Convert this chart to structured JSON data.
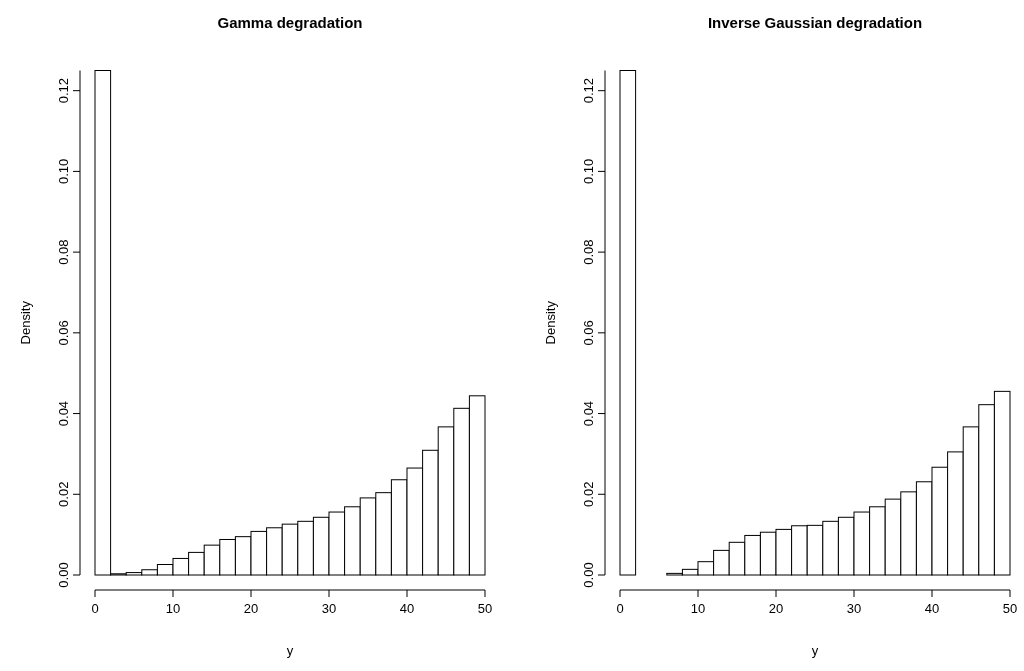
{
  "chart_data": [
    {
      "type": "histogram",
      "title": "Gamma degradation",
      "xlabel": "y",
      "ylabel": "Density",
      "color": "#ffffff",
      "bins": [
        0,
        2,
        4,
        6,
        8,
        10,
        12,
        14,
        16,
        18,
        20,
        22,
        24,
        26,
        28,
        30,
        32,
        34,
        36,
        38,
        40,
        42,
        44,
        46,
        48,
        50
      ],
      "values": [
        0.125,
        0.0003,
        0.0006,
        0.0013,
        0.0026,
        0.0041,
        0.0056,
        0.0074,
        0.0088,
        0.0095,
        0.0108,
        0.0117,
        0.0126,
        0.0133,
        0.0143,
        0.0156,
        0.0169,
        0.0191,
        0.0204,
        0.0236,
        0.0265,
        0.0309,
        0.0367,
        0.0413,
        0.0444
      ],
      "xlim": [
        0,
        50
      ],
      "xticks": [
        0,
        10,
        20,
        30,
        40,
        50
      ],
      "ylim": [
        0,
        0.125
      ],
      "yticks": [
        {
          "value": 0,
          "label": "0.00"
        },
        {
          "value": 0.02,
          "label": "0.02"
        },
        {
          "value": 0.04,
          "label": "0.04"
        },
        {
          "value": 0.06,
          "label": "0.06"
        },
        {
          "value": 0.08,
          "label": "0.08"
        },
        {
          "value": 0.1,
          "label": "0.10"
        },
        {
          "value": 0.12,
          "label": "0.12"
        }
      ]
    },
    {
      "type": "histogram",
      "title": "Inverse Gaussian degradation",
      "xlabel": "y",
      "ylabel": "Density",
      "color": "#ffffff",
      "bins": [
        0,
        2,
        4,
        6,
        8,
        10,
        12,
        14,
        16,
        18,
        20,
        22,
        24,
        26,
        28,
        30,
        32,
        34,
        36,
        38,
        40,
        42,
        44,
        46,
        48,
        50
      ],
      "values": [
        0.125,
        0,
        0,
        0.0004,
        0.0014,
        0.0033,
        0.0061,
        0.0081,
        0.0098,
        0.0106,
        0.0113,
        0.0122,
        0.0123,
        0.0133,
        0.0143,
        0.0156,
        0.0169,
        0.0188,
        0.0206,
        0.0231,
        0.0267,
        0.0305,
        0.0367,
        0.0422,
        0.0455
      ],
      "xlim": [
        0,
        50
      ],
      "xticks": [
        0,
        10,
        20,
        30,
        40,
        50
      ],
      "ylim": [
        0,
        0.125
      ],
      "yticks": [
        {
          "value": 0,
          "label": "0.00"
        },
        {
          "value": 0.02,
          "label": "0.02"
        },
        {
          "value": 0.04,
          "label": "0.04"
        },
        {
          "value": 0.06,
          "label": "0.06"
        },
        {
          "value": 0.08,
          "label": "0.08"
        },
        {
          "value": 0.1,
          "label": "0.10"
        },
        {
          "value": 0.12,
          "label": "0.12"
        }
      ]
    }
  ]
}
